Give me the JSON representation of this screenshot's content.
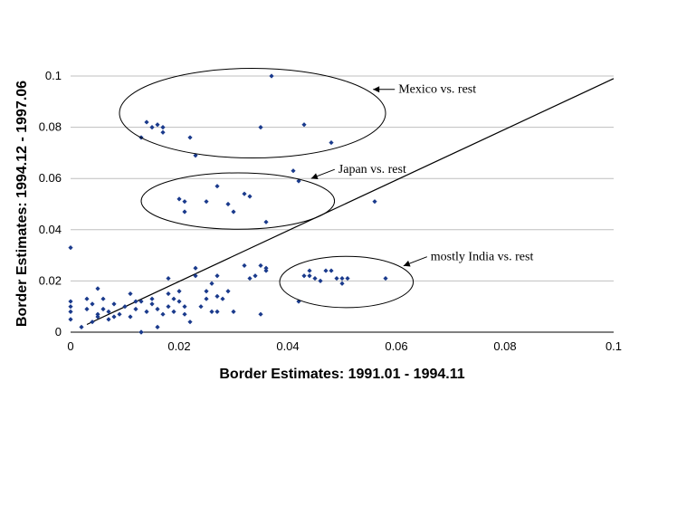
{
  "chart_data": {
    "type": "scatter",
    "xlabel": "Border Estimates: 1991.01 - 1994.11",
    "ylabel": "Border Estimates: 1994.12 - 1997.06",
    "xlim": [
      0,
      0.1
    ],
    "ylim": [
      0,
      0.1
    ],
    "x_ticks": [
      "0",
      "0.02",
      "0.04",
      "0.06",
      "0.08",
      "0.1"
    ],
    "y_ticks": [
      "0",
      "0.02",
      "0.04",
      "0.06",
      "0.08",
      "0.1"
    ],
    "grid": "horizontal",
    "legend": "none",
    "marker_color": "#1a3a8c",
    "reference_line": {
      "x": [
        0.003,
        0.1
      ],
      "y": [
        0.003,
        0.099
      ]
    },
    "points": [
      [
        0.0,
        0.033
      ],
      [
        0.0,
        0.012
      ],
      [
        0.0,
        0.01
      ],
      [
        0.0,
        0.008
      ],
      [
        0.0,
        0.005
      ],
      [
        0.002,
        0.002
      ],
      [
        0.003,
        0.013
      ],
      [
        0.003,
        0.009
      ],
      [
        0.004,
        0.004
      ],
      [
        0.004,
        0.011
      ],
      [
        0.005,
        0.017
      ],
      [
        0.005,
        0.007
      ],
      [
        0.005,
        0.006
      ],
      [
        0.006,
        0.009
      ],
      [
        0.006,
        0.013
      ],
      [
        0.007,
        0.005
      ],
      [
        0.007,
        0.008
      ],
      [
        0.008,
        0.011
      ],
      [
        0.008,
        0.006
      ],
      [
        0.009,
        0.007
      ],
      [
        0.01,
        0.01
      ],
      [
        0.011,
        0.015
      ],
      [
        0.011,
        0.006
      ],
      [
        0.012,
        0.012
      ],
      [
        0.012,
        0.009
      ],
      [
        0.013,
        0.0
      ],
      [
        0.013,
        0.0
      ],
      [
        0.013,
        0.012
      ],
      [
        0.014,
        0.008
      ],
      [
        0.015,
        0.011
      ],
      [
        0.015,
        0.013
      ],
      [
        0.016,
        0.002
      ],
      [
        0.016,
        0.009
      ],
      [
        0.017,
        0.007
      ],
      [
        0.018,
        0.015
      ],
      [
        0.018,
        0.021
      ],
      [
        0.018,
        0.01
      ],
      [
        0.019,
        0.008
      ],
      [
        0.019,
        0.013
      ],
      [
        0.02,
        0.016
      ],
      [
        0.02,
        0.012
      ],
      [
        0.021,
        0.007
      ],
      [
        0.021,
        0.01
      ],
      [
        0.022,
        0.004
      ],
      [
        0.023,
        0.022
      ],
      [
        0.023,
        0.025
      ],
      [
        0.024,
        0.01
      ],
      [
        0.025,
        0.013
      ],
      [
        0.025,
        0.016
      ],
      [
        0.026,
        0.008
      ],
      [
        0.026,
        0.019
      ],
      [
        0.027,
        0.014
      ],
      [
        0.027,
        0.008
      ],
      [
        0.027,
        0.022
      ],
      [
        0.028,
        0.013
      ],
      [
        0.029,
        0.016
      ],
      [
        0.03,
        0.008
      ],
      [
        0.032,
        0.026
      ],
      [
        0.033,
        0.021
      ],
      [
        0.034,
        0.022
      ],
      [
        0.035,
        0.007
      ],
      [
        0.035,
        0.026
      ],
      [
        0.036,
        0.024
      ],
      [
        0.036,
        0.025
      ],
      [
        0.042,
        0.012
      ],
      [
        0.013,
        0.076
      ],
      [
        0.014,
        0.082
      ],
      [
        0.015,
        0.08
      ],
      [
        0.016,
        0.081
      ],
      [
        0.017,
        0.08
      ],
      [
        0.017,
        0.078
      ],
      [
        0.022,
        0.076
      ],
      [
        0.023,
        0.069
      ],
      [
        0.035,
        0.08
      ],
      [
        0.037,
        0.1
      ],
      [
        0.043,
        0.081
      ],
      [
        0.048,
        0.074
      ],
      [
        0.041,
        0.063
      ],
      [
        0.042,
        0.059
      ],
      [
        0.056,
        0.051
      ],
      [
        0.02,
        0.052
      ],
      [
        0.021,
        0.051
      ],
      [
        0.021,
        0.047
      ],
      [
        0.025,
        0.051
      ],
      [
        0.027,
        0.057
      ],
      [
        0.029,
        0.05
      ],
      [
        0.03,
        0.047
      ],
      [
        0.032,
        0.054
      ],
      [
        0.033,
        0.053
      ],
      [
        0.036,
        0.043
      ],
      [
        0.043,
        0.022
      ],
      [
        0.044,
        0.024
      ],
      [
        0.044,
        0.022
      ],
      [
        0.045,
        0.021
      ],
      [
        0.046,
        0.02
      ],
      [
        0.047,
        0.024
      ],
      [
        0.048,
        0.024
      ],
      [
        0.049,
        0.021
      ],
      [
        0.05,
        0.021
      ],
      [
        0.05,
        0.019
      ],
      [
        0.051,
        0.021
      ],
      [
        0.058,
        0.021
      ]
    ],
    "annotations": [
      {
        "text": "Mexico vs. rest",
        "ellipse": {
          "cx": 0.0335,
          "cy": 0.0855,
          "rx": 0.0245,
          "ry": 0.0175
        },
        "arrow_to": [
          0.0557,
          0.0948
        ]
      },
      {
        "text": "Japan vs. rest",
        "ellipse": {
          "cx": 0.0308,
          "cy": 0.0512,
          "rx": 0.0178,
          "ry": 0.011
        },
        "arrow_to": [
          0.0443,
          0.06
        ]
      },
      {
        "text": "mostly India vs. rest",
        "ellipse": {
          "cx": 0.0508,
          "cy": 0.0196,
          "rx": 0.0123,
          "ry": 0.01
        },
        "arrow_to": [
          0.0613,
          0.0259
        ]
      }
    ]
  }
}
